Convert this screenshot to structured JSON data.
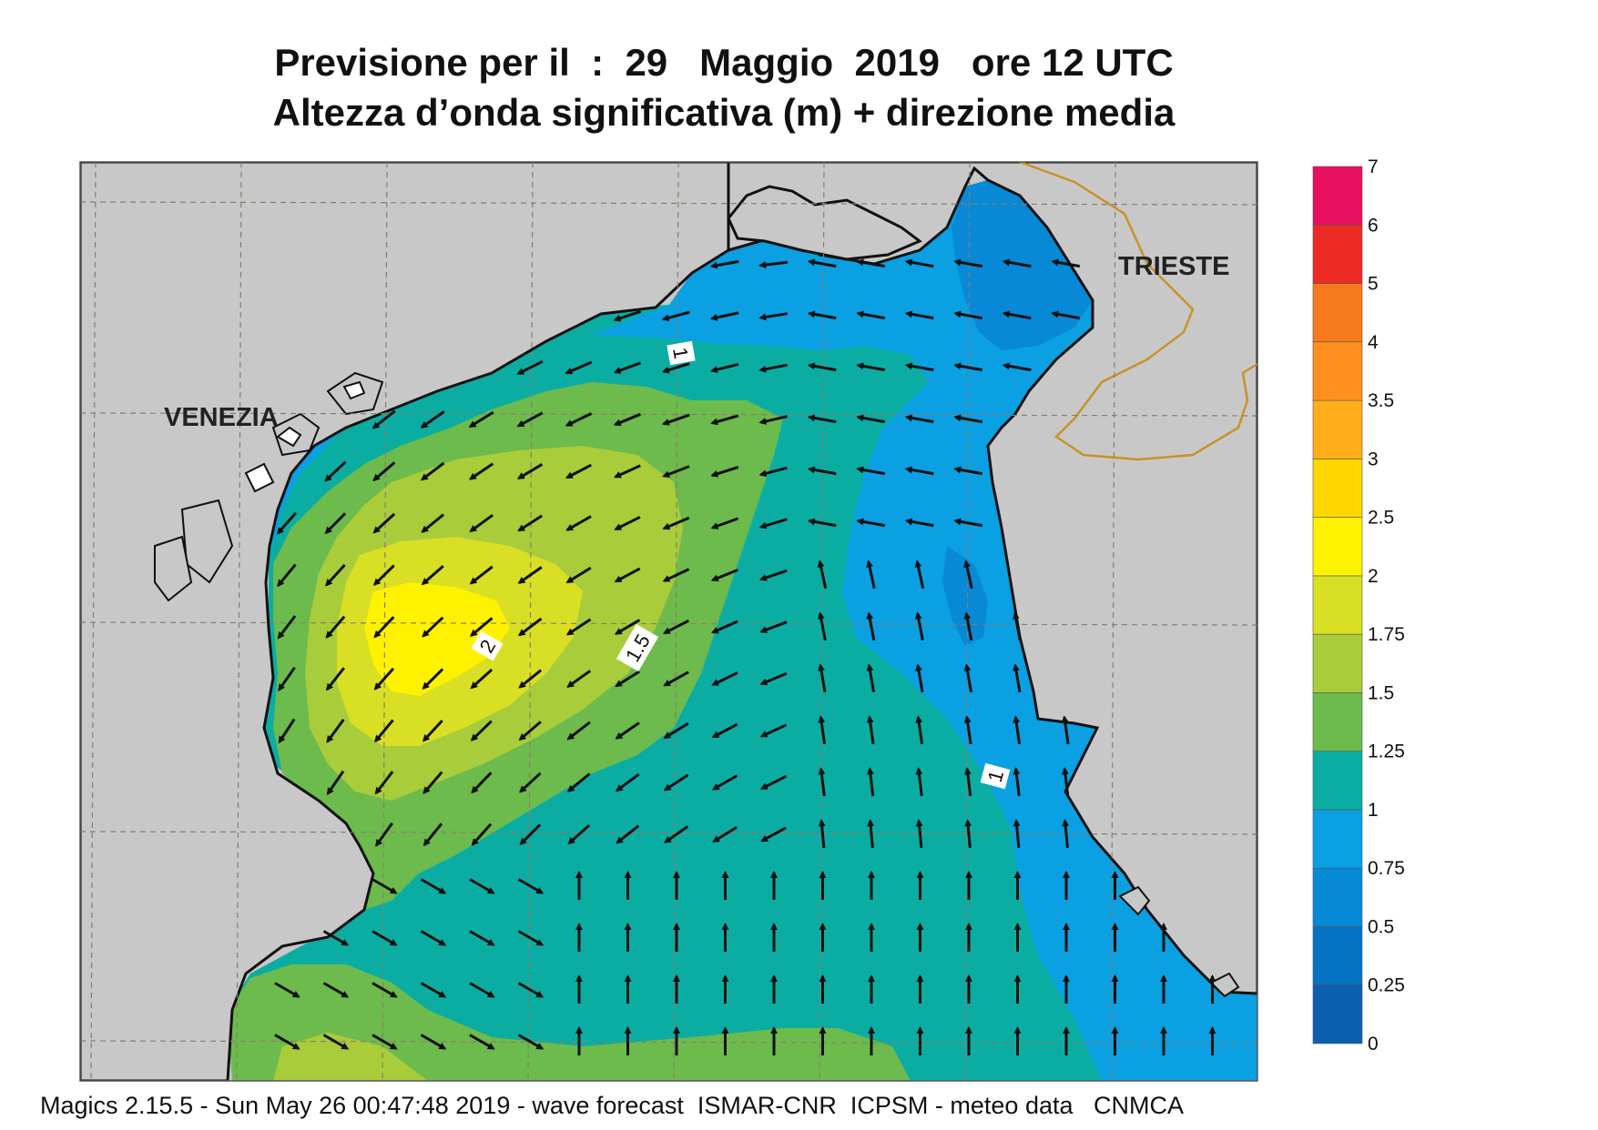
{
  "title": {
    "line1": "Previsione per il  :  29   Maggio  2019   ore 12 UTC",
    "line2": "Altezza d’onda significativa (m) + direzione media"
  },
  "places": {
    "venezia": "VENEZIA",
    "trieste": "TRIESTE"
  },
  "contour_labels": [
    "1",
    "1.5",
    "2",
    "1"
  ],
  "colorbar": {
    "ticks": [
      "0",
      "0.25",
      "0.5",
      "0.75",
      "1",
      "1.25",
      "1.5",
      "1.75",
      "2",
      "2.5",
      "3",
      "3.5",
      "4",
      "5",
      "6",
      "7"
    ],
    "colors": [
      "#0a5fb0",
      "#0672c4",
      "#0789d6",
      "#0aa0e2",
      "#0bada3",
      "#6cbb4c",
      "#a8cc3a",
      "#d9df25",
      "#fff200",
      "#ffd700",
      "#ffae1a",
      "#ff901f",
      "#f87a1e",
      "#ee2a24",
      "#e8105f"
    ]
  },
  "colors": {
    "land": "#c8c8c8",
    "coast": "#111111",
    "border": "#c8922a",
    "grid": "#8c7c6c"
  },
  "footer": "Magics 2.15.5 - Sun May 26 00:47:48 2019 - wave forecast  ISMAR-CNR  ICPSM - meteo data   CNMCA"
}
